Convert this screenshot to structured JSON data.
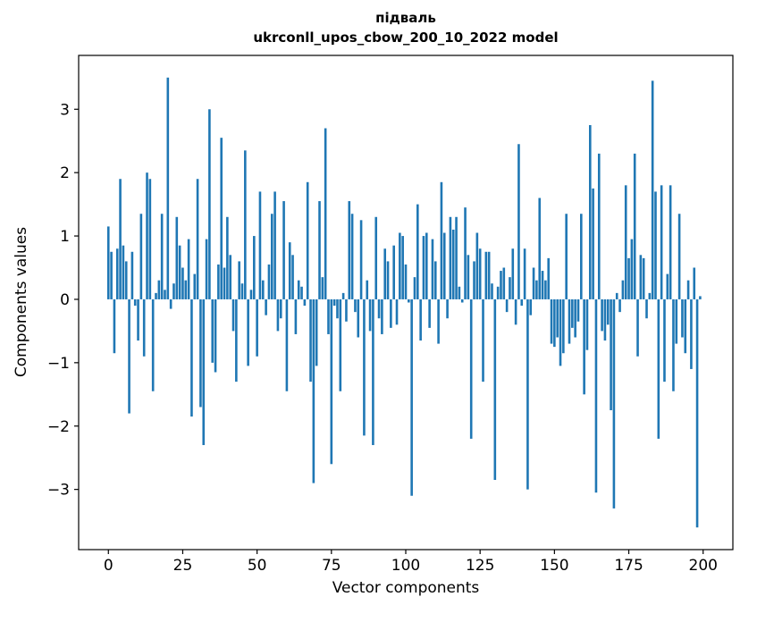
{
  "chart_data": {
    "type": "bar",
    "title_line1": "підваль",
    "title_line2": "ukrconll_upos_cbow_200_10_2022 model",
    "xlabel": "Vector components",
    "ylabel": "Components values",
    "bar_color": "#1f77b4",
    "axis_color": "#000000",
    "x_ticks": [
      0,
      25,
      50,
      75,
      100,
      125,
      150,
      175,
      200
    ],
    "y_ticks": [
      -3,
      -2,
      -1,
      0,
      1,
      2,
      3
    ],
    "xlim": [
      -10,
      210
    ],
    "ylim": [
      -3.95,
      3.85
    ],
    "grid": false,
    "legend": "none",
    "values": [
      1.15,
      0.75,
      -0.85,
      0.8,
      1.9,
      0.85,
      0.6,
      -1.8,
      0.75,
      -0.1,
      -0.65,
      1.35,
      -0.9,
      2.0,
      1.9,
      -1.45,
      0.1,
      0.3,
      1.35,
      0.15,
      3.5,
      -0.15,
      0.25,
      1.3,
      0.85,
      0.5,
      0.3,
      0.95,
      -1.85,
      0.4,
      1.9,
      -1.7,
      -2.3,
      0.95,
      3.0,
      -1.0,
      -1.15,
      0.55,
      2.55,
      0.5,
      1.3,
      0.7,
      -0.5,
      -1.3,
      0.6,
      0.25,
      2.35,
      -1.05,
      0.15,
      1.0,
      -0.9,
      1.7,
      0.3,
      -0.25,
      0.55,
      1.35,
      1.7,
      -0.5,
      -0.3,
      1.55,
      -1.45,
      0.9,
      0.7,
      -0.55,
      0.3,
      0.2,
      -0.1,
      1.85,
      -1.3,
      -2.9,
      -1.05,
      1.55,
      0.35,
      2.7,
      -0.55,
      -2.6,
      -0.1,
      -0.3,
      -1.45,
      0.1,
      -0.35,
      1.55,
      1.35,
      -0.2,
      -0.6,
      1.25,
      -2.15,
      0.3,
      -0.5,
      -2.3,
      1.3,
      -0.3,
      -0.55,
      0.8,
      0.6,
      -0.45,
      0.85,
      -0.4,
      1.05,
      1.0,
      0.55,
      -0.05,
      -3.1,
      0.35,
      1.5,
      -0.65,
      1.0,
      1.05,
      -0.45,
      0.95,
      0.6,
      -0.7,
      1.85,
      1.05,
      -0.3,
      1.3,
      1.1,
      1.3,
      0.2,
      -0.05,
      1.45,
      0.7,
      -2.2,
      0.6,
      1.05,
      0.8,
      -1.3,
      0.75,
      0.75,
      0.25,
      -2.85,
      0.2,
      0.45,
      0.5,
      -0.2,
      0.35,
      0.8,
      -0.4,
      2.45,
      -0.1,
      0.8,
      -3.0,
      -0.25,
      0.5,
      0.3,
      1.6,
      0.45,
      0.3,
      0.65,
      -0.7,
      -0.75,
      -0.6,
      -1.05,
      -0.85,
      1.35,
      -0.7,
      -0.45,
      -0.6,
      -0.35,
      1.35,
      -1.5,
      -0.8,
      2.75,
      1.75,
      -3.05,
      2.3,
      -0.5,
      -0.65,
      -0.4,
      -1.75,
      -3.3,
      0.1,
      -0.2,
      0.3,
      1.8,
      0.65,
      0.95,
      2.3,
      -0.9,
      0.7,
      0.65,
      -0.3,
      0.1,
      3.45,
      1.7,
      -2.2,
      1.8,
      -1.3,
      0.4,
      1.8,
      -1.45,
      -0.7,
      1.35,
      -0.6,
      -0.85,
      0.3,
      -1.1,
      0.5,
      -3.6,
      0.05
    ]
  }
}
